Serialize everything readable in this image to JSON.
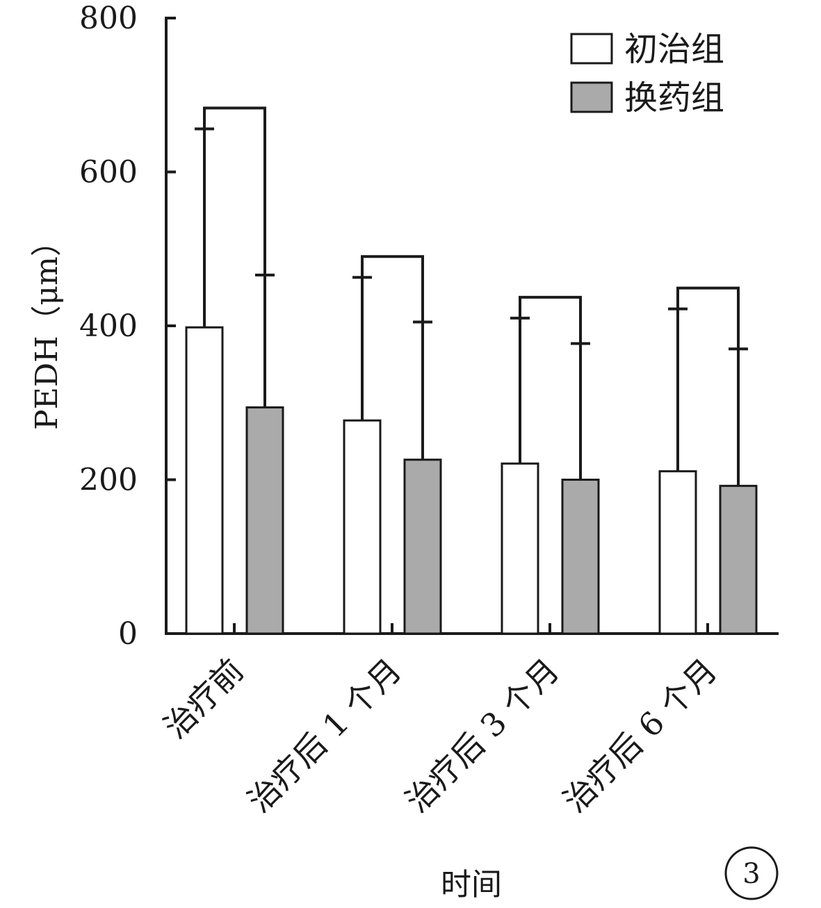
{
  "chart_data": {
    "type": "bar",
    "title": "",
    "xlabel": "时间",
    "ylabel": "PEDH（μm）",
    "ylim": [
      0,
      800
    ],
    "yticks": [
      0,
      200,
      400,
      600,
      800
    ],
    "grid": false,
    "legend_position": "top-right",
    "categories": [
      "治疗前",
      "治疗后 1 个月",
      "治疗后 3 个月",
      "治疗后 6 个月"
    ],
    "series": [
      {
        "name": "初治组",
        "color": "#ffffff",
        "values": [
          398,
          277,
          221,
          211
        ],
        "error_upper": [
          656,
          463,
          410,
          422
        ]
      },
      {
        "name": "换药组",
        "color": "#aaaaaa",
        "values": [
          294,
          226,
          200,
          192
        ],
        "error_upper": [
          466,
          405,
          377,
          370
        ]
      }
    ],
    "panel_label": "3"
  }
}
